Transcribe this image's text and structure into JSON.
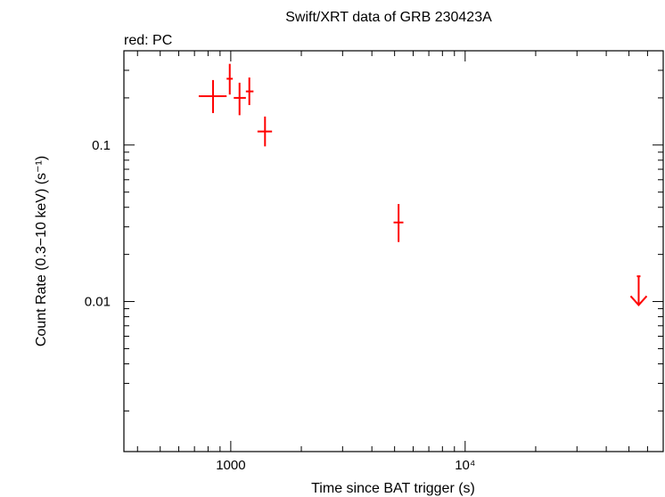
{
  "chart_data": {
    "type": "scatter",
    "title": "Swift/XRT data of GRB 230423A",
    "legend_text": "red: PC",
    "xlabel": "Time since BAT trigger (s)",
    "ylabel": "Count Rate (0.3−10 keV) (s⁻¹)",
    "xscale": "log",
    "yscale": "log",
    "xlim": [
      350,
      70000
    ],
    "ylim": [
      0.0011,
      0.4
    ],
    "x_tick_labels": [
      {
        "value": 1000,
        "text": "1000"
      },
      {
        "value": 10000,
        "text": "10⁴"
      }
    ],
    "y_tick_labels": [
      {
        "value": 0.1,
        "text": "0.1"
      },
      {
        "value": 0.01,
        "text": "0.01"
      }
    ],
    "series": [
      {
        "color": "#ff0000",
        "points": [
          {
            "x": 840,
            "xlo": 730,
            "xhi": 960,
            "y": 0.205,
            "ylo": 0.16,
            "yhi": 0.26
          },
          {
            "x": 990,
            "xlo": 960,
            "xhi": 1020,
            "y": 0.265,
            "ylo": 0.21,
            "yhi": 0.33
          },
          {
            "x": 1090,
            "xlo": 1030,
            "xhi": 1160,
            "y": 0.2,
            "ylo": 0.155,
            "yhi": 0.25
          },
          {
            "x": 1200,
            "xlo": 1160,
            "xhi": 1250,
            "y": 0.22,
            "ylo": 0.18,
            "yhi": 0.27
          },
          {
            "x": 1400,
            "xlo": 1300,
            "xhi": 1500,
            "y": 0.122,
            "ylo": 0.098,
            "yhi": 0.152
          },
          {
            "x": 5200,
            "xlo": 4950,
            "xhi": 5450,
            "y": 0.032,
            "ylo": 0.024,
            "yhi": 0.042
          }
        ],
        "upper_limits": [
          {
            "x": 55000,
            "y": 0.0095,
            "ytop": 0.0145
          }
        ]
      }
    ]
  }
}
